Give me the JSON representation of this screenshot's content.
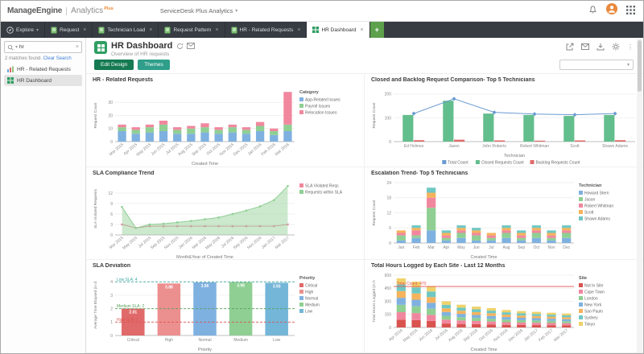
{
  "header": {
    "brand": "ManageEngine",
    "product": "Analytics",
    "plus": "Plus",
    "app_selector": "ServiceDesk Plus Analytics"
  },
  "tabs": {
    "explore": "Explore",
    "items": [
      "Request",
      "Technician Load",
      "Request Pattern",
      "HR - Related Requests"
    ],
    "active": "HR Dashboard",
    "add_label": "+"
  },
  "sidebar": {
    "search_value": "hr",
    "matches_text": "2 matches found.",
    "clear_search_label": "Clear Search",
    "items": [
      {
        "label": "HR - Related Requests"
      },
      {
        "label": "HR Dashboard"
      }
    ]
  },
  "page": {
    "title": "HR Dashboard",
    "subtitle": "Overview of HR requests"
  },
  "toolbar": {
    "edit_design": "Edit Design",
    "themes": "Themes"
  },
  "chart_data": [
    {
      "type": "stacked-bar",
      "title": "HR - Related Requests",
      "xlabel": "Created Time",
      "ylabel": "Request Count",
      "rotate_x": true,
      "categories": [
        "Mar 2015",
        "Apr 2015",
        "May 2015",
        "Jun 2015",
        "Jul 2015",
        "Aug 2015",
        "Sep 2015",
        "Oct 2015",
        "Nov 2015",
        "Dec 2015",
        "Jan 2016",
        "Feb 2016",
        "Mar 2016"
      ],
      "series": [
        {
          "name": "App-Related Issues",
          "color": "#7fb1e0",
          "values": [
            8,
            6,
            7,
            8,
            6,
            6,
            7,
            6,
            7,
            6,
            8,
            5,
            8
          ]
        },
        {
          "name": "Payroll Issues",
          "color": "#8fcf93",
          "values": [
            3,
            3,
            4,
            5,
            3,
            4,
            4,
            3,
            4,
            3,
            4,
            3,
            5
          ]
        },
        {
          "name": "Relocation Issues",
          "color": "#f1879e",
          "values": [
            2,
            2,
            2,
            3,
            2,
            2,
            3,
            2,
            2,
            2,
            3,
            2,
            25
          ]
        }
      ],
      "ymax": 40,
      "yticks": [
        0,
        10,
        20,
        30
      ],
      "legend": {
        "position": "right",
        "title": "Category"
      }
    },
    {
      "type": "bar-line",
      "title": "Closed and Backlog Request Comparison- Top 5 Technicians",
      "xlabel": "Technician",
      "ylabel": "Request Count",
      "rotate_x": false,
      "categories": [
        "Ed Holmes",
        "Jason",
        "John Roberts",
        "Robert Whitman",
        "Scott",
        "Shawn Adams"
      ],
      "bars": [
        {
          "name": "Closed Requests Count",
          "color": "#63be8d",
          "values": [
            112,
            172,
            118,
            112,
            108,
            112
          ]
        },
        {
          "name": "Backlog Requests Count",
          "color": "#e06a6a",
          "values": [
            6,
            8,
            5,
            4,
            5,
            6
          ]
        }
      ],
      "line": {
        "name": "Total Count",
        "color": "#6b9bd2",
        "values": [
          118,
          180,
          123,
          116,
          113,
          118
        ]
      },
      "ymax": 220,
      "yticks": [
        0,
        100,
        200
      ],
      "legend": {
        "position": "bottom"
      }
    },
    {
      "type": "area-line",
      "title": "SLA Compliance Trend",
      "xlabel": "Month&Year of Created Time",
      "ylabel": "SLA Violated Requests",
      "rotate_x": true,
      "categories": [
        "Mar 2015",
        "May 2015",
        "Jul 2015",
        "Sep 2015",
        "Nov 2015",
        "Jan 2016",
        "Mar 2016",
        "May 2016",
        "Jul 2016",
        "Sep 2016",
        "Nov 2016",
        "Jan 2017",
        "Mar 2017"
      ],
      "series": [
        {
          "name": "SLA Violated Reqs",
          "color": "#f1879e",
          "kind": "line",
          "values": [
            3,
            2,
            2.5,
            2.5,
            2.5,
            2.5,
            2.5,
            2.5,
            2.5,
            2.5,
            2.5,
            2.5,
            3
          ]
        },
        {
          "name": "Requests within SLA",
          "color": "#8fcf93",
          "kind": "area",
          "values": [
            8,
            2,
            3,
            3.2,
            3.6,
            4,
            4.5,
            5,
            6,
            7,
            8.2,
            10,
            14
          ]
        }
      ],
      "ymax": 15,
      "yticks": [
        0,
        3,
        6,
        9,
        12
      ],
      "legend": {
        "position": "right"
      }
    },
    {
      "type": "stacked-bar",
      "title": "Escalation Trend- Top 5 Technicians",
      "xlabel": "Created Time",
      "ylabel": "Request Count",
      "rotate_x": false,
      "categories": [
        "Jan",
        "Feb",
        "Mar",
        "Apr",
        "May",
        "Jun",
        "Jul",
        "Aug",
        "Sep",
        "Oct",
        "Nov",
        "Dec"
      ],
      "series": [
        {
          "name": "Howard Stern",
          "color": "#7fb1e0",
          "values": [
            1,
            2,
            5,
            1,
            2,
            1,
            1,
            2,
            1,
            2,
            1,
            2
          ]
        },
        {
          "name": "Jason",
          "color": "#8fcf93",
          "values": [
            2,
            1,
            9,
            1,
            2,
            2,
            1,
            2,
            1,
            2,
            1,
            2
          ]
        },
        {
          "name": "Robert Whitman",
          "color": "#f1879e",
          "values": [
            1,
            2,
            4,
            1,
            1,
            1,
            1,
            1,
            1,
            1,
            1,
            1
          ]
        },
        {
          "name": "Scott",
          "color": "#f5b35c",
          "values": [
            1,
            1,
            2,
            1,
            1,
            1,
            1,
            1,
            1,
            1,
            1,
            1
          ]
        },
        {
          "name": "Shawn Adams",
          "color": "#6fc7c3",
          "values": [
            0,
            1,
            2,
            1,
            1,
            1,
            0,
            1,
            1,
            1,
            1,
            1
          ]
        }
      ],
      "ymax": 24,
      "yticks": [
        0,
        6,
        12,
        18,
        24
      ],
      "legend": {
        "position": "right",
        "title": "Technician"
      }
    },
    {
      "type": "bar",
      "title": "SLA Deviation",
      "xlabel": "Priority",
      "ylabel": "Average Time Elapsed (in d",
      "rotate_x": false,
      "categories": [
        "Critical",
        "High",
        "Normal",
        "Medium",
        "Low"
      ],
      "values": [
        2.01,
        3.88,
        3.96,
        3.98,
        3.93
      ],
      "value_labels": [
        "2.01",
        "3.88",
        "3.96",
        "3.98",
        "3.93"
      ],
      "colors": [
        "#e06a6a",
        "#ec8f8f",
        "#7fb1e0",
        "#8fcf93",
        "#74b6d8"
      ],
      "ymax": 4.5,
      "yticks": [
        0,
        1,
        2,
        3,
        4
      ],
      "ref_lines": [
        {
          "label": "Low SLA: 4",
          "value": 4,
          "color": "#3aa7a0"
        },
        {
          "label": "Medium SLA: 2",
          "value": 2,
          "color": "#57a05a"
        },
        {
          "label": "High SLA: 1",
          "value": 1,
          "color": "#d9534f"
        }
      ],
      "legend": {
        "position": "right",
        "title": "Priority",
        "entries": [
          {
            "name": "Critical",
            "color": "#e06a6a"
          },
          {
            "name": "High",
            "color": "#ec8f8f"
          },
          {
            "name": "Normal",
            "color": "#7fb1e0"
          },
          {
            "name": "Medium",
            "color": "#8fcf93"
          },
          {
            "name": "Low",
            "color": "#74b6d8"
          }
        ]
      }
    },
    {
      "type": "stacked-bar",
      "title": "Total Hours Logged by Each Site - Last 12 Months",
      "xlabel": "Created Time",
      "ylabel": "Total Hours Logged (in h",
      "rotate_x": true,
      "categories": [
        "Apr 2016",
        "May 2016",
        "Jun 2016",
        "Jul 2016",
        "Aug 2016",
        "Sep 2016",
        "Oct 2016",
        "Nov 2016",
        "Dec 2016",
        "Jan 2017",
        "Feb 2017",
        "Mar 2017"
      ],
      "series": [
        {
          "name": "Not In Site",
          "color": "#d9534f",
          "values": [
            90,
            85,
            75,
            45,
            40,
            38,
            35,
            30,
            28,
            27,
            26,
            25
          ]
        },
        {
          "name": "Cape Town",
          "color": "#f1879e",
          "values": [
            85,
            80,
            70,
            45,
            40,
            36,
            33,
            30,
            28,
            27,
            25,
            24
          ]
        },
        {
          "name": "London",
          "color": "#8fcf93",
          "values": [
            85,
            78,
            70,
            44,
            38,
            35,
            32,
            30,
            28,
            26,
            25,
            23
          ]
        },
        {
          "name": "New York",
          "color": "#7fb1e0",
          "values": [
            80,
            75,
            68,
            43,
            38,
            34,
            32,
            29,
            27,
            26,
            24,
            23
          ]
        },
        {
          "name": "Sao Paulo",
          "color": "#f5b35c",
          "values": [
            78,
            72,
            66,
            42,
            36,
            33,
            31,
            28,
            26,
            25,
            24,
            22
          ]
        },
        {
          "name": "Sydney",
          "color": "#6fc7c3",
          "values": [
            75,
            70,
            64,
            41,
            35,
            32,
            30,
            27,
            26,
            24,
            23,
            22
          ]
        },
        {
          "name": "Tokyo",
          "color": "#efd26a",
          "values": [
            70,
            65,
            60,
            40,
            34,
            31,
            29,
            26,
            25,
            24,
            22,
            21
          ]
        }
      ],
      "ymax": 600,
      "yticks": [
        0,
        150,
        300,
        450,
        600
      ],
      "annotation": {
        "label": "Total Count: 470",
        "value": 470,
        "color": "#e05252"
      },
      "legend": {
        "position": "right",
        "title": "Site"
      }
    }
  ]
}
